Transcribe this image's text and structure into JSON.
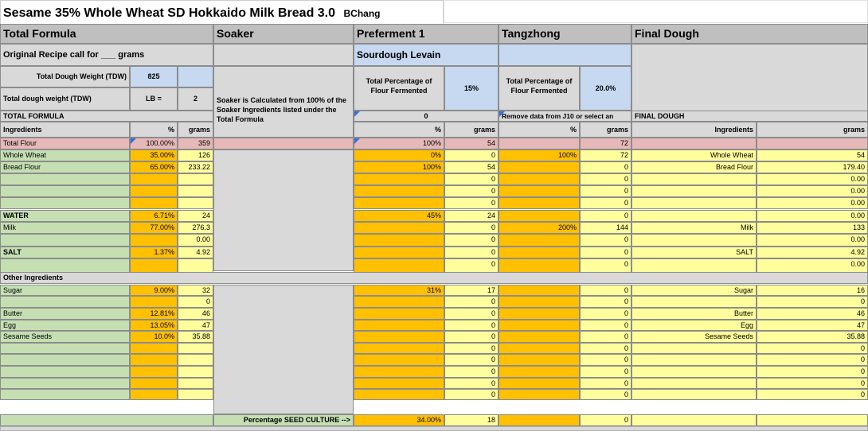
{
  "title": "Sesame 35% Whole Wheat SD Hokkaido Milk Bread 3.0",
  "author": "BChang",
  "sections": {
    "total": "Total Formula",
    "soaker": "Soaker",
    "pref": "Preferment 1",
    "tang": "Tangzhong",
    "final": "Final Dough"
  },
  "original_recipe": "Original Recipe call for ___ grams",
  "sourdough_levain": "Sourdough Levain",
  "tdw_label": "Total Dough Weight (TDW)",
  "tdw_value": "825",
  "tdw_lb_label": "Total dough weight (TDW)",
  "lb_eq": "LB  =",
  "lb_value": "2",
  "pct_flour_fermented": "Total Percentage of Flour Fermented",
  "pref_pct": "15%",
  "tang_pct": "20.0%",
  "soaker_note": "Soaker is Calculated from 100% of the Soaker Ingredients listed under the Total Formula",
  "total_formula_label": "TOTAL FORMULA",
  "pref_zero": "0",
  "tang_note": "Remove data from J10 or select an",
  "final_dough_label": "FINAL DOUGH",
  "h_ingredients": "Ingredients",
  "h_pct": "%",
  "h_grams": "grams",
  "total_flour": {
    "name": "Total Flour",
    "pct": "100.00%",
    "grams": "359",
    "pref_pct": "100%",
    "pref_g": "54",
    "tang_g": "72"
  },
  "water_label": "WATER",
  "salt_label": "SALT",
  "other_label": "Other Ingredients",
  "seed_label": "Percentage SEED CULTURE  -->",
  "seed_pct": "34.00%",
  "seed_g": "18",
  "rows": [
    {
      "name": "Whole Wheat",
      "pct": "35.00%",
      "g": "126",
      "pp": "0%",
      "pg": "0",
      "tp": "100%",
      "tg": "72",
      "fn": "Whole Wheat",
      "fg": "54"
    },
    {
      "name": "Bread Flour",
      "pct": "65.00%",
      "g": "233.22",
      "pp": "100%",
      "pg": "54",
      "tp": "",
      "tg": "0",
      "fn": "Bread Flour",
      "fg": "179.40"
    },
    {
      "name": "",
      "pct": "",
      "g": "",
      "pp": "",
      "pg": "0",
      "tp": "",
      "tg": "0",
      "fn": "",
      "fg": "0.00"
    },
    {
      "name": "",
      "pct": "",
      "g": "",
      "pp": "",
      "pg": "0",
      "tp": "",
      "tg": "0",
      "fn": "",
      "fg": "0.00"
    },
    {
      "name": "",
      "pct": "",
      "g": "",
      "pp": "",
      "pg": "0",
      "tp": "",
      "tg": "0",
      "fn": "",
      "fg": "0.00"
    },
    {
      "name": "WATER",
      "pct": "6.71%",
      "g": "24",
      "pp": "45%",
      "pg": "24",
      "tp": "",
      "tg": "0",
      "fn": "",
      "fg": "0.00"
    },
    {
      "name": "Milk",
      "pct": "77.00%",
      "g": "276.3",
      "pp": "",
      "pg": "0",
      "tp": "200%",
      "tg": "144",
      "fn": "Milk",
      "fg": "133"
    },
    {
      "name": "",
      "pct": "",
      "g": "0.00",
      "pp": "",
      "pg": "0",
      "tp": "",
      "tg": "0",
      "fn": "",
      "fg": "0.00"
    },
    {
      "name": "SALT",
      "pct": "1.37%",
      "g": "4.92",
      "pp": "",
      "pg": "0",
      "tp": "",
      "tg": "0",
      "fn": "SALT",
      "fg": "4.92"
    },
    {
      "name": "",
      "pct": "",
      "g": "",
      "pp": "",
      "pg": "0",
      "tp": "",
      "tg": "0",
      "fn": "",
      "fg": "0.00"
    },
    {
      "name": "Sugar",
      "pct": "9.00%",
      "g": "32",
      "pp": "31%",
      "pg": "17",
      "tp": "",
      "tg": "0",
      "fn": "Sugar",
      "fg": "16"
    },
    {
      "name": "",
      "pct": "",
      "g": "0",
      "pp": "",
      "pg": "0",
      "tp": "",
      "tg": "0",
      "fn": "",
      "fg": "0"
    },
    {
      "name": "Butter",
      "pct": "12.81%",
      "g": "46",
      "pp": "",
      "pg": "0",
      "tp": "",
      "tg": "0",
      "fn": "Butter",
      "fg": "46"
    },
    {
      "name": "Egg",
      "pct": "13.05%",
      "g": "47",
      "pp": "",
      "pg": "0",
      "tp": "",
      "tg": "0",
      "fn": "Egg",
      "fg": "47"
    },
    {
      "name": "Sesame Seeds",
      "pct": "10.0%",
      "g": "35.88",
      "pp": "",
      "pg": "0",
      "tp": "",
      "tg": "0",
      "fn": "Sesame Seeds",
      "fg": "35.88"
    },
    {
      "name": "",
      "pct": "",
      "g": "",
      "pp": "",
      "pg": "0",
      "tp": "",
      "tg": "0",
      "fn": "",
      "fg": "0"
    },
    {
      "name": "",
      "pct": "",
      "g": "",
      "pp": "",
      "pg": "0",
      "tp": "",
      "tg": "0",
      "fn": "",
      "fg": "0"
    },
    {
      "name": "",
      "pct": "",
      "g": "",
      "pp": "",
      "pg": "0",
      "tp": "",
      "tg": "0",
      "fn": "",
      "fg": "0"
    },
    {
      "name": "",
      "pct": "",
      "g": "",
      "pp": "",
      "pg": "0",
      "tp": "",
      "tg": "0",
      "fn": "",
      "fg": "0"
    },
    {
      "name": "",
      "pct": "",
      "g": "",
      "pp": "",
      "pg": "0",
      "tp": "",
      "tg": "0",
      "fn": "",
      "fg": "0"
    }
  ]
}
